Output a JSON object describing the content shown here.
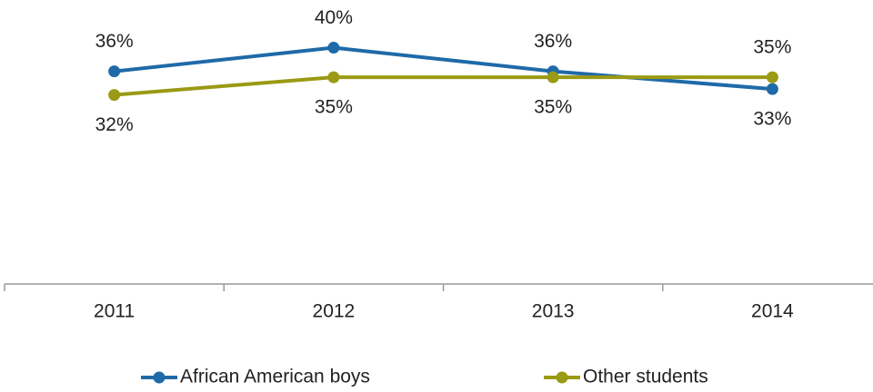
{
  "chart_data": {
    "type": "line",
    "categories": [
      "2011",
      "2012",
      "2013",
      "2014"
    ],
    "series": [
      {
        "name": "African American boys",
        "color": "#1f6aa8",
        "values": [
          36,
          40,
          36,
          33
        ],
        "value_labels": [
          "36%",
          "40%",
          "36%",
          "33%"
        ]
      },
      {
        "name": "Other students",
        "color": "#9a9a14",
        "values": [
          32,
          35,
          35,
          35
        ],
        "value_labels": [
          "32%",
          "35%",
          "35%",
          "35%"
        ]
      }
    ],
    "ylim": [
      0,
      45
    ]
  }
}
